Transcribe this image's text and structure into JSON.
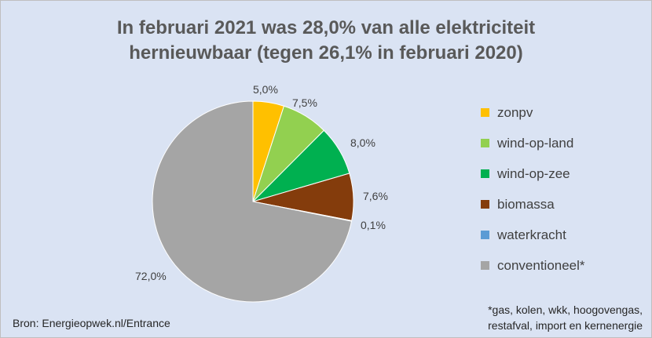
{
  "chart_data": {
    "type": "pie",
    "title": "In februari 2021 was 28,0% van alle elektriciteit hernieuwbaar (tegen 26,1% in februari 2020)",
    "title_lines": [
      "In februari 2021 was 28,0% van alle elektriciteit",
      "hernieuwbaar (tegen 26,1% in februari 2020)"
    ],
    "slices": [
      {
        "name": "zonpv",
        "value": 5.0,
        "label": "5,0%",
        "color": "#ffc000"
      },
      {
        "name": "wind-op-land",
        "value": 7.5,
        "label": "7,5%",
        "color": "#92d050"
      },
      {
        "name": "wind-op-zee",
        "value": 8.0,
        "label": "8,0%",
        "color": "#00b050"
      },
      {
        "name": "biomassa",
        "value": 7.6,
        "label": "7,6%",
        "color": "#843c0c"
      },
      {
        "name": "waterkracht",
        "value": 0.1,
        "label": "0,1%",
        "color": "#5b9bd5"
      },
      {
        "name": "conventioneel*",
        "value": 72.0,
        "label": "72,0%",
        "color": "#a5a5a5"
      }
    ],
    "legend_position": "right",
    "background_color": "#dae3f3"
  },
  "source": "Bron: Energieopwek.nl/Entrance",
  "footnote_lines": [
    "*gas, kolen, wkk, hoogovengas,",
    "restafval, import en kernenergie"
  ]
}
